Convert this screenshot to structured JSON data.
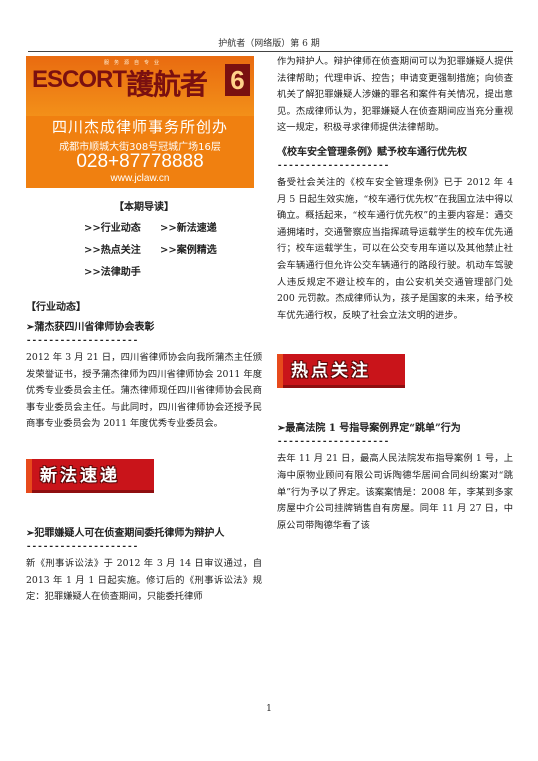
{
  "header": {
    "title": "护航者（网络版）第 6 期"
  },
  "banner": {
    "tagline": "服务源自专业",
    "brand_en": "ESCORT",
    "brand_cn": "護航者",
    "issue": "6",
    "firm": "四川杰成律师事务所创办",
    "address": "成都市顺城大街308号冠城广场16层",
    "phone": "028+87778888",
    "website": "www.jclaw.cn"
  },
  "guide": {
    "title": "【本期导读】",
    "items": [
      ">>行业动态",
      ">>新法速递",
      ">>热点关注",
      ">>案例精选",
      ">>法律助手"
    ]
  },
  "left": {
    "section1": "【行业动态】",
    "article1_title": "➢蒲杰获四川省律师协会表彰",
    "dashes": "--------------------",
    "article1_body": "2012 年 3 月 21 日，四川省律师协会向我所蒲杰主任颁发荣誉证书，授予蒲杰律师为四川省律师协会 2011 年度优秀专业委员会主任。蒲杰律师现任四川省律师协会民商事专业委员会主任。与此同时，四川省律师协会还授予民商事专业委员会为 2011 年度优秀专业委员会。",
    "banner2": "新法速递",
    "article2_title": "➢犯罪嫌疑人可在侦查期间委托律师为辩护人",
    "article2_body": "新《刑事诉讼法》于 2012 年 3 月 14 日审议通过，自 2013 年 1 月 1 日起实施。修订后的《刑事诉讼法》规定：犯罪嫌疑人在侦查期间，只能委托律师"
  },
  "right": {
    "article2_cont": "作为辩护人。辩护律师在侦查期间可以为犯罪嫌疑人提供法律帮助；代理申诉、控告；申请变更强制措施；向侦查机关了解犯罪嫌疑人涉嫌的罪名和案件有关情况，提出意见。杰成律师认为，犯罪嫌疑人在侦查期间应当充分重视这一规定，积极寻求律师提供法律帮助。",
    "article3_title": "《校车安全管理条例》赋予校车通行优先权",
    "dashes": "--------------------",
    "article3_body": "备受社会关注的《校车安全管理条例》已于 2012 年 4 月 5 日起生效实施，“校车通行优先权”在我国立法中得以确立。概括起来，“校车通行优先权”的主要内容是：遇交通拥堵时，交通警察应当指挥疏导运载学生的校车优先通行；校车运载学生，可以在公交专用车道以及其他禁止社会车辆通行但允许公交车辆通行的路段行驶。机动车驾驶人违反规定不避让校车的，由公安机关交通管理部门处 200 元罚款。杰成律师认为，孩子是国家的未来，给予校车优先通行权，反映了社会立法文明的进步。",
    "banner3": "热点关注",
    "article4_title": "➢最高法院 1 号指导案例界定“跳单”行为",
    "article4_body": "去年 11 月 21 日，最高人民法院发布指导案例 1 号，上海中原物业顾问有限公司诉陶德华居间合同纠纷案对“跳单”行为予以了界定。该案案情是：2008 年，李某到多家房屋中介公司挂牌销售自有房屋。同年 11 月 27 日，中原公司带陶德华看了该"
  },
  "footer": {
    "page_number": "1"
  },
  "colors": {
    "banner_orange": "#f08010",
    "brand_dark_red": "#7a1010",
    "banner_red": "#c9141a"
  }
}
